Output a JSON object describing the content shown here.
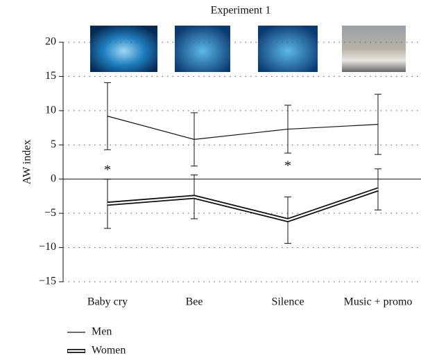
{
  "chart_data": {
    "type": "line",
    "title": "Experiment 1",
    "ylabel": "AW index",
    "categories": [
      "Baby cry",
      "Bee",
      "Silence",
      "Music + promo"
    ],
    "series": [
      {
        "name": "Men",
        "color": "#111111",
        "style": "single",
        "values": [
          9.2,
          5.8,
          7.3,
          8.0
        ],
        "errors": [
          4.9,
          3.9,
          3.5,
          4.4
        ]
      },
      {
        "name": "Women",
        "color": "#111111",
        "style": "double",
        "values": [
          -3.6,
          -2.6,
          -6.0,
          -1.5
        ],
        "errors": [
          3.6,
          3.2,
          3.4,
          3.0
        ]
      }
    ],
    "annotations": [
      {
        "text": "*",
        "x": "Baby cry"
      },
      {
        "text": "*",
        "x": "Silence"
      }
    ],
    "ylim": [
      -15,
      20
    ],
    "yticks": [
      {
        "value": -15,
        "label": "−15"
      },
      {
        "value": -10,
        "label": "−10"
      },
      {
        "value": -5,
        "label": "−5"
      },
      0,
      5,
      10,
      15,
      20
    ],
    "grid": true,
    "legend": "bottom-left"
  }
}
